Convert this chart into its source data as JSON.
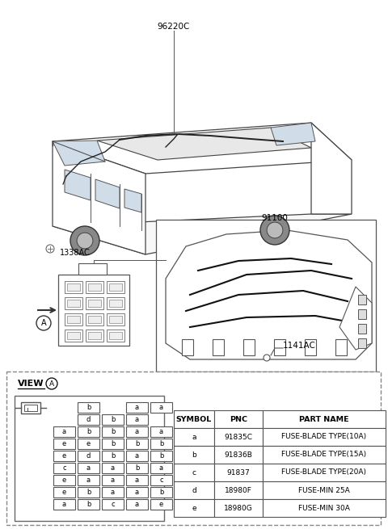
{
  "bg_color": "#ffffff",
  "part_number_label": "96220C",
  "part_number_label2": "91100",
  "part_number_label3": "1338AC",
  "part_number_label4": "1141AC",
  "table_headers": [
    "SYMBOL",
    "PNC",
    "PART NAME"
  ],
  "table_rows": [
    [
      "a",
      "91835C",
      "FUSE-BLADE TYPE(10A)"
    ],
    [
      "b",
      "91836B",
      "FUSE-BLADE TYPE(15A)"
    ],
    [
      "c",
      "91837",
      "FUSE-BLADE TYPE(20A)"
    ],
    [
      "d",
      "18980F",
      "FUSE-MIN 25A"
    ],
    [
      "e",
      "18980G",
      "FUSE-MIN 30A"
    ]
  ],
  "fuse_grid": [
    [
      null,
      "b",
      null,
      "a",
      "a"
    ],
    [
      null,
      "d",
      "b",
      "a",
      null
    ],
    [
      "a",
      "b",
      "b",
      "a",
      "a"
    ],
    [
      "e",
      "e",
      "b",
      "b",
      "b"
    ],
    [
      "e",
      "d",
      "b",
      "a",
      "b"
    ],
    [
      "c",
      "a",
      "a",
      "b",
      "a"
    ],
    [
      "e",
      "a",
      "a",
      "a",
      "c"
    ],
    [
      "e",
      "b",
      "a",
      "a",
      "b"
    ],
    [
      "a",
      "b",
      "c",
      "a",
      "e"
    ]
  ]
}
